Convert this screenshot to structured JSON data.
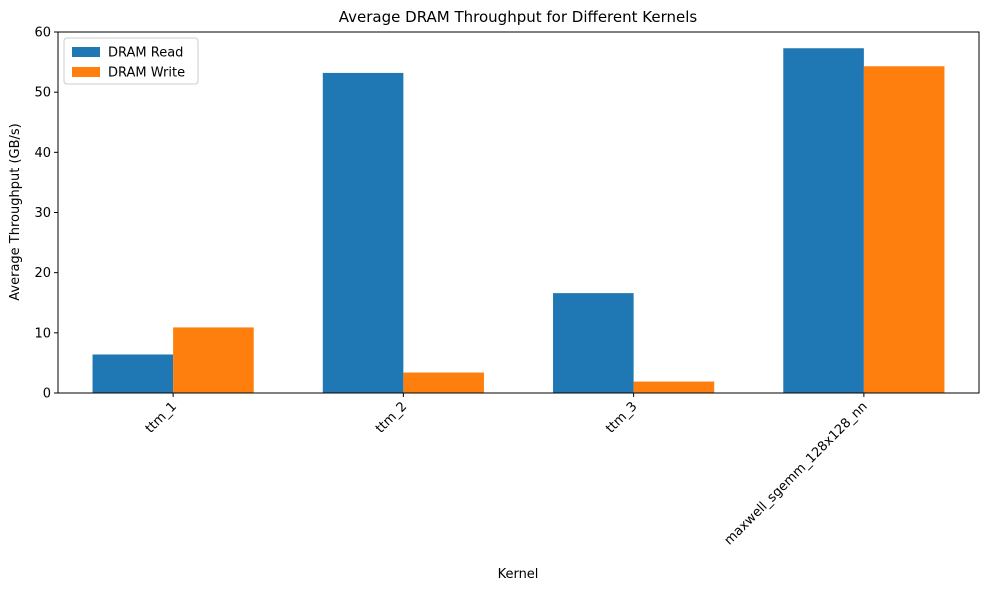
{
  "chart_data": {
    "type": "bar",
    "title": "Average DRAM Throughput for Different Kernels",
    "xlabel": "Kernel",
    "ylabel": "Average Throughput (GB/s)",
    "categories": [
      "ttm_1",
      "ttm_2",
      "ttm_3",
      "maxwell_sgemm_128x128_nn"
    ],
    "series": [
      {
        "name": "DRAM Read",
        "color": "#1f77b4",
        "values": [
          6.4,
          53.2,
          16.6,
          57.3
        ]
      },
      {
        "name": "DRAM Write",
        "color": "#ff7f0e",
        "values": [
          10.9,
          3.4,
          1.9,
          54.3
        ]
      }
    ],
    "ylim": [
      0,
      60
    ],
    "yticks": [
      0,
      10,
      20,
      30,
      40,
      50,
      60
    ],
    "legend_position": "top-left",
    "grid": false,
    "xtick_rotation": -45
  }
}
